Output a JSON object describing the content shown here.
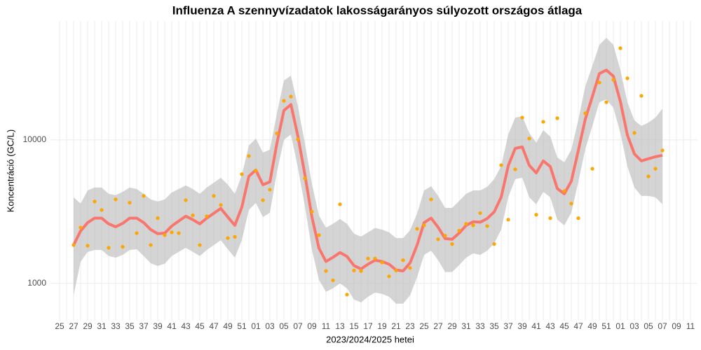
{
  "chart_data": {
    "type": "line",
    "title": "Influenza A szennyvízadatok lakosságarányos súlyozott országos átlaga",
    "x_label": "2023/2024/2025 hetei",
    "y_label": "Koncentráció (GC/L)",
    "log_y": true,
    "grid": true,
    "ylim": [
      550,
      67500
    ],
    "yticks": [
      1000,
      10000
    ],
    "categories": [
      "25",
      null,
      "27",
      null,
      "29",
      null,
      "31",
      null,
      "33",
      null,
      "35",
      null,
      "37",
      null,
      "39",
      null,
      "41",
      null,
      "43",
      null,
      "45",
      null,
      "47",
      null,
      "49",
      null,
      "51",
      null,
      "01",
      null,
      "03",
      null,
      "05",
      null,
      "07",
      null,
      "09",
      null,
      "11",
      null,
      "13",
      null,
      "15",
      null,
      "17",
      null,
      "19",
      null,
      "21",
      null,
      "23",
      null,
      "25",
      null,
      "27",
      null,
      "29",
      null,
      "31",
      null,
      "33",
      null,
      "35",
      null,
      "37",
      null,
      "39",
      null,
      "41",
      null,
      "43",
      null,
      "45",
      null,
      "47",
      null,
      "49",
      null,
      "51",
      null,
      "01",
      null,
      "03",
      null,
      "05",
      null,
      "07",
      null,
      "09",
      null,
      "11"
    ],
    "band": {
      "color": "#bdbdbd",
      "upper": [
        null,
        null,
        3980,
        3600,
        4450,
        4660,
        4660,
        4210,
        4120,
        4350,
        4660,
        4550,
        4210,
        3850,
        3720,
        3850,
        4300,
        4550,
        4820,
        4550,
        4210,
        4660,
        5040,
        5450,
        4870,
        4210,
        5700,
        9140,
        10230,
        8170,
        8550,
        15310,
        25970,
        28100,
        17140,
        9450,
        4930,
        2970,
        2450,
        2600,
        2810,
        2600,
        2220,
        2120,
        2270,
        2430,
        2370,
        2270,
        2070,
        2070,
        2350,
        3070,
        4450,
        4760,
        4070,
        3360,
        3360,
        3760,
        4210,
        4450,
        4450,
        4710,
        5330,
        6600,
        10930,
        14310,
        14640,
        11180,
        9560,
        11700,
        10570,
        7550,
        6980,
        8550,
        13840,
        23740,
        32880,
        46080,
        51530,
        46080,
        30740,
        18330,
        13690,
        12510,
        13240,
        14310,
        16570,
        null,
        null,
        null,
        null
      ],
      "lower": [
        null,
        null,
        825,
        1415,
        1656,
        1710,
        1710,
        1550,
        1510,
        1580,
        1710,
        1730,
        1550,
        1380,
        1323,
        1370,
        1550,
        1660,
        1770,
        1660,
        1550,
        1710,
        1850,
        2000,
        1730,
        1510,
        2000,
        3250,
        3640,
        2900,
        3110,
        5960,
        10000,
        10930,
        6380,
        3440,
        1710,
        1057,
        873,
        923,
        999,
        923,
        771,
        737,
        807,
        863,
        844,
        807,
        721,
        721,
        825,
        1105,
        1580,
        1690,
        1450,
        1200,
        1200,
        1340,
        1510,
        1620,
        1580,
        1690,
        1900,
        2370,
        3980,
        5330,
        5450,
        3980,
        3560,
        4350,
        3980,
        2780,
        2540,
        3110,
        5100,
        8640,
        12510,
        18330,
        19170,
        16760,
        11180,
        6530,
        4660,
        4070,
        4070,
        3980,
        3560,
        null,
        null,
        null,
        null
      ]
    },
    "smooth": {
      "color": "#f8766d",
      "values": [
        null,
        null,
        1850,
        2320,
        2650,
        2850,
        2850,
        2600,
        2480,
        2620,
        2850,
        2850,
        2650,
        2370,
        2220,
        2240,
        2510,
        2720,
        2940,
        2780,
        2600,
        2850,
        3080,
        3330,
        2900,
        2540,
        3400,
        5580,
        6170,
        4870,
        5100,
        9460,
        16050,
        17650,
        10600,
        5700,
        2900,
        1760,
        1420,
        1520,
        1640,
        1540,
        1330,
        1260,
        1360,
        1450,
        1420,
        1360,
        1240,
        1220,
        1390,
        1850,
        2650,
        2850,
        2460,
        2050,
        2030,
        2240,
        2540,
        2690,
        2670,
        2830,
        3150,
        4000,
        6600,
        8740,
        8940,
        6650,
        5890,
        7140,
        6520,
        4580,
        4210,
        5160,
        8450,
        14010,
        20050,
        29000,
        30700,
        27800,
        18500,
        10800,
        7990,
        7140,
        7390,
        7640,
        7810,
        null,
        null,
        null,
        null
      ]
    },
    "points": {
      "color": "#ffa500",
      "values": [
        null,
        null,
        1850,
        2450,
        1830,
        3720,
        3250,
        1770,
        3850,
        1800,
        3650,
        2240,
        4070,
        1850,
        2850,
        2170,
        2270,
        2240,
        3800,
        2980,
        1850,
        2940,
        4070,
        3520,
        2070,
        2110,
        5770,
        7720,
        6100,
        3800,
        4500,
        11100,
        18750,
        20050,
        10100,
        5390,
        3160,
        2170,
        1220,
        1050,
        3560,
        835,
        1230,
        1220,
        1490,
        1490,
        1400,
        1120,
        1230,
        1450,
        1280,
        2400,
        2540,
        3850,
        2030,
        2150,
        1880,
        2330,
        2600,
        2540,
        3090,
        2510,
        1880,
        6670,
        2780,
        6240,
        14320,
        10230,
        3010,
        13380,
        2850,
        14170,
        4400,
        3600,
        2850,
        15330,
        6300,
        25120,
        18330,
        26270,
        43600,
        26900,
        11190,
        20300,
        5570,
        6300,
        8450,
        null,
        null,
        null,
        null
      ]
    }
  }
}
